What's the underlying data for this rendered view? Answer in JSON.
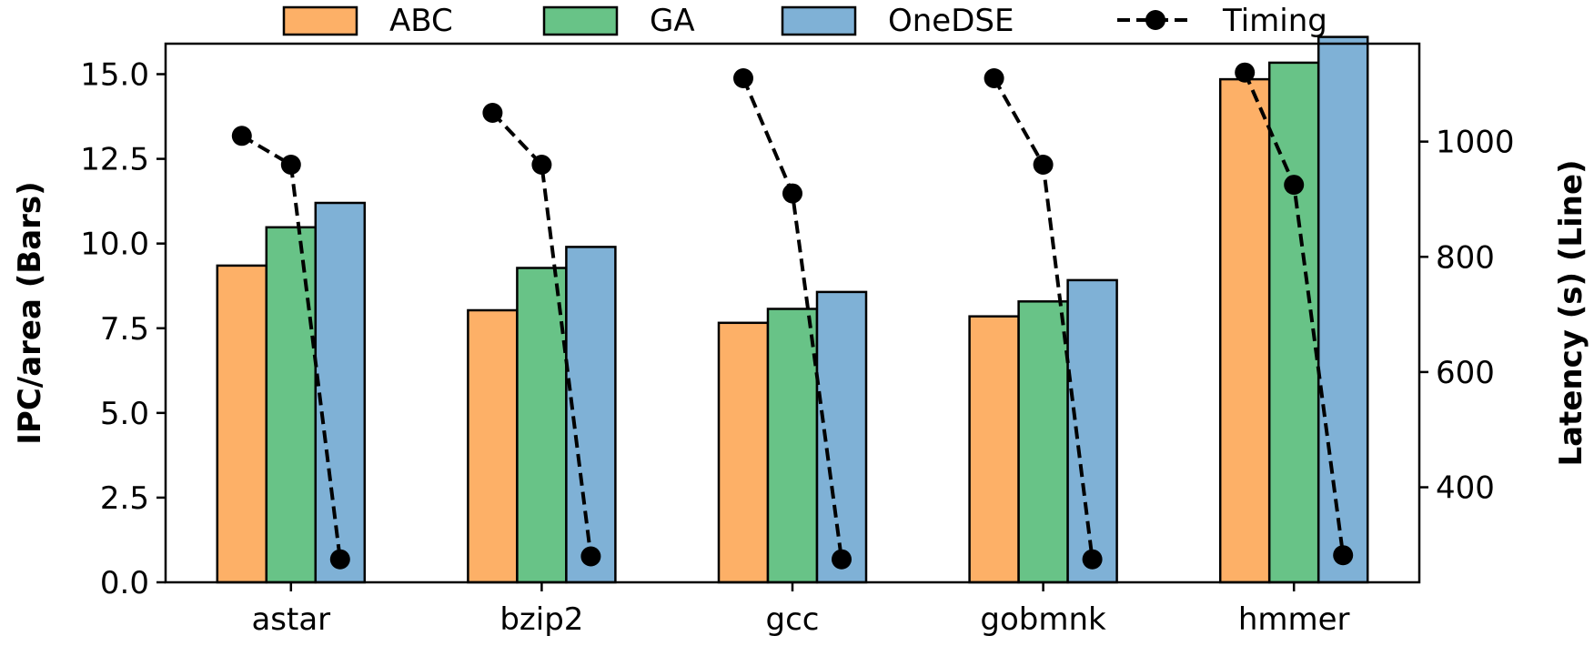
{
  "chart_data": {
    "type": "bar",
    "categories": [
      "astar",
      "bzip2",
      "gcc",
      "gobmnk",
      "hmmer"
    ],
    "series": [
      {
        "name": "ABC",
        "color": "#fdb067",
        "values": [
          9.35,
          8.03,
          7.66,
          7.85,
          14.85
        ]
      },
      {
        "name": "GA",
        "color": "#68c387",
        "values": [
          10.48,
          9.28,
          8.07,
          8.29,
          15.34
        ]
      },
      {
        "name": "OneDSE",
        "color": "#7fb1d6",
        "values": [
          11.2,
          9.9,
          8.57,
          8.92,
          16.1
        ]
      }
    ],
    "line_series": {
      "name": "Timing",
      "color": "#000000",
      "axis": "right",
      "values": [
        [
          1010,
          960,
          275
        ],
        [
          1050,
          960,
          280
        ],
        [
          1110,
          910,
          275
        ],
        [
          1110,
          960,
          275
        ],
        [
          1120,
          925,
          282
        ]
      ]
    },
    "ylabel": "IPC/area (Bars)",
    "ylabel_right": "Latency (s) (Line)",
    "xlabel": "",
    "title": "",
    "ylim": [
      0,
      15.9
    ],
    "ylim_right": [
      235,
      1170
    ],
    "yticks": [
      0.0,
      2.5,
      5.0,
      7.5,
      10.0,
      12.5,
      15.0
    ],
    "yticks_right": [
      400,
      600,
      800,
      1000
    ],
    "legend": [
      "ABC",
      "GA",
      "OneDSE",
      "Timing"
    ],
    "legend_position": "top",
    "grid": false
  }
}
